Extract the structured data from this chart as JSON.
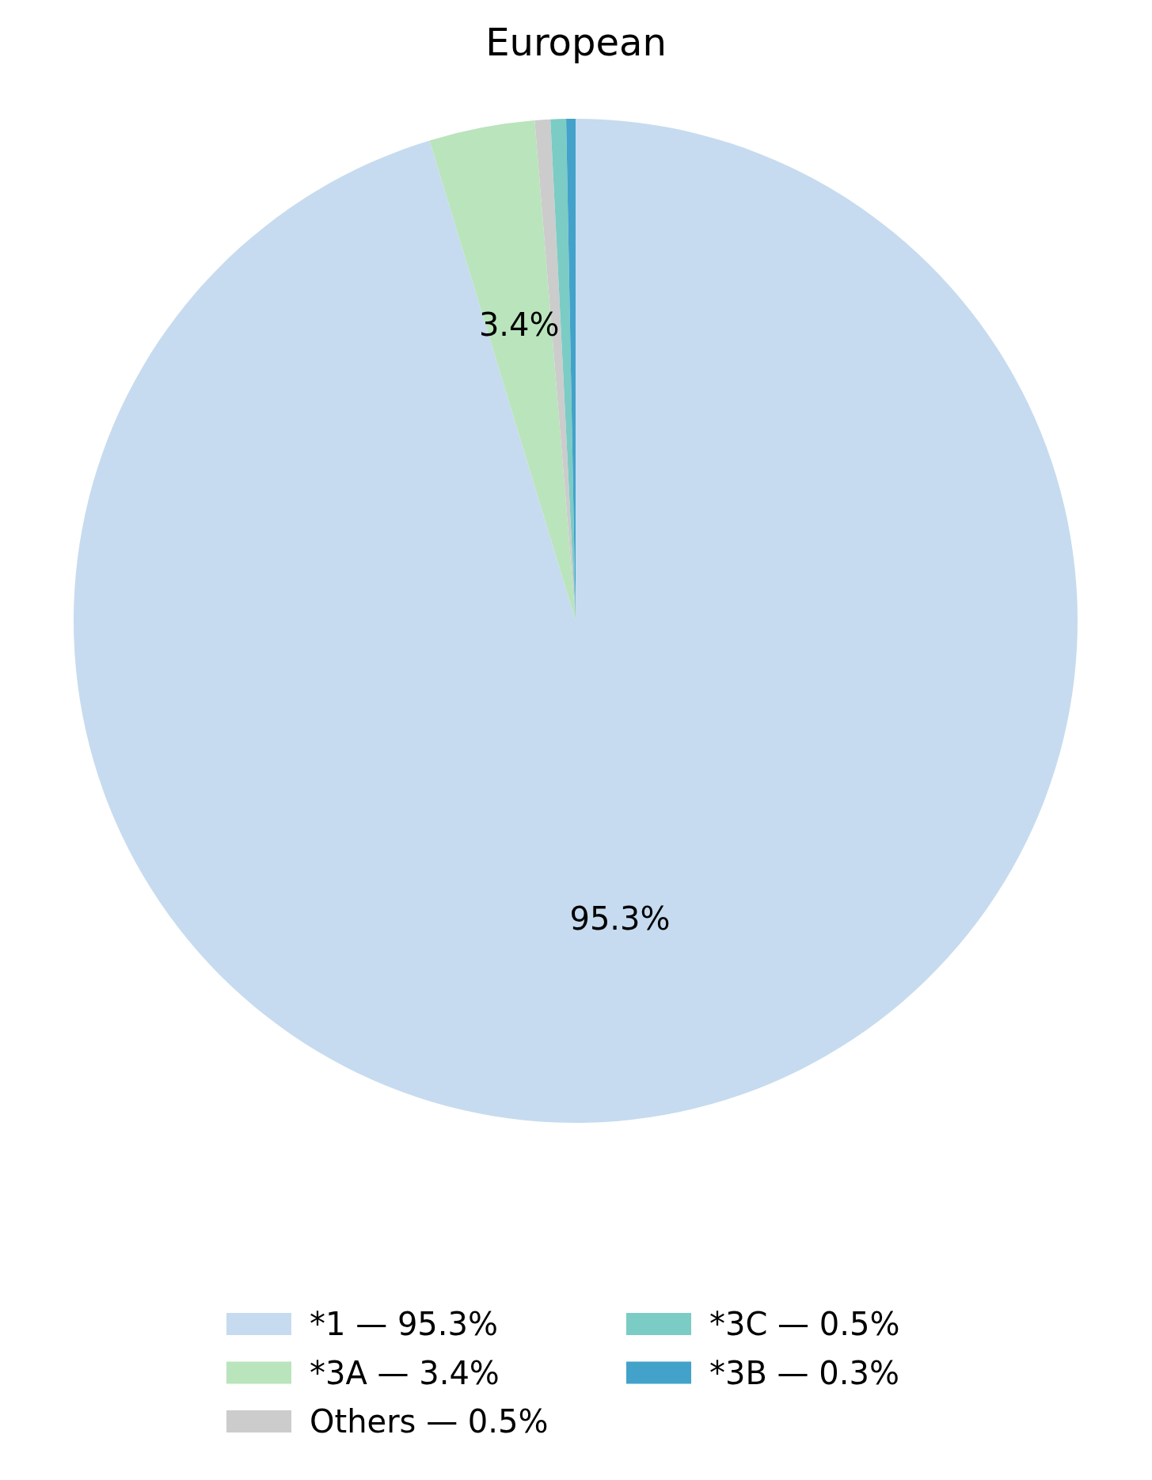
{
  "chart_data": {
    "type": "pie",
    "title": "European",
    "categories": [
      "*1 — 95.3%",
      "*3A — 3.4%",
      "Others — 0.5%",
      "*3C — 0.5%",
      "*3B — 0.3%"
    ],
    "values": [
      95.3,
      3.4,
      0.5,
      0.5,
      0.3
    ],
    "colors": [
      "#c6dbef",
      "#bae4bc",
      "#cccccc",
      "#7bccc4",
      "#43a2ca"
    ],
    "value_labels": [
      "95.3%",
      "3.4%",
      null,
      null,
      null
    ],
    "legend": "bottom"
  }
}
